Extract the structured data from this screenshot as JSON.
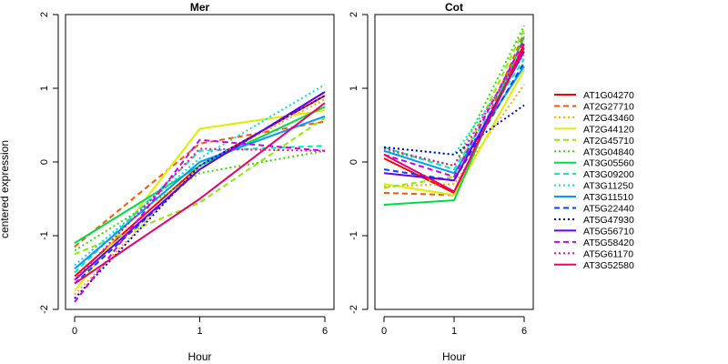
{
  "chart_data": {
    "type": "line",
    "x": [
      "0",
      "1",
      "6"
    ],
    "xlabel": "Hour",
    "ylabel": "centered expression",
    "ylim": [
      -2,
      2
    ],
    "yticks": [
      -2,
      -1,
      0,
      1,
      2
    ],
    "legend": "right",
    "grid": false,
    "panels": [
      {
        "title": "Mer"
      },
      {
        "title": "Cot"
      }
    ],
    "series": [
      {
        "name": "AT1G04270",
        "color": "#FF0000",
        "dash": "solid",
        "values": {
          "Mer": [
            -1.55,
            -0.05,
            0.9
          ],
          "Cot": [
            0.05,
            -0.42,
            1.6
          ]
        }
      },
      {
        "name": "AT2G27710",
        "color": "#FF5500",
        "dash": "dashed",
        "values": {
          "Mer": [
            -1.15,
            0.25,
            0.55
          ],
          "Cot": [
            -0.42,
            -0.45,
            1.75
          ]
        }
      },
      {
        "name": "AT2G43460",
        "color": "#FFAA00",
        "dash": "dotted",
        "values": {
          "Mer": [
            -1.8,
            -0.05,
            0.85
          ],
          "Cot": [
            -0.33,
            -0.3,
            1.05
          ]
        }
      },
      {
        "name": "AT2G44120",
        "color": "#DDEE00",
        "dash": "solid",
        "values": {
          "Mer": [
            -1.75,
            0.45,
            0.7
          ],
          "Cot": [
            -0.3,
            -0.45,
            1.25
          ]
        }
      },
      {
        "name": "AT2G45710",
        "color": "#88EE00",
        "dash": "dashed",
        "values": {
          "Mer": [
            -1.25,
            -0.55,
            0.6
          ],
          "Cot": [
            -0.35,
            -0.2,
            1.8
          ]
        }
      },
      {
        "name": "AT3G04840",
        "color": "#33DD00",
        "dash": "dotted",
        "values": {
          "Mer": [
            -1.2,
            -0.15,
            0.15
          ],
          "Cot": [
            0.15,
            -0.05,
            1.85
          ]
        }
      },
      {
        "name": "AT3G05560",
        "color": "#00DD44",
        "dash": "solid",
        "values": {
          "Mer": [
            -1.1,
            -0.05,
            0.75
          ],
          "Cot": [
            -0.58,
            -0.52,
            1.7
          ]
        }
      },
      {
        "name": "AT3G09200",
        "color": "#00EEAA",
        "dash": "dashed",
        "values": {
          "Mer": [
            -1.5,
            0.15,
            0.22
          ],
          "Cot": [
            0.2,
            -0.1,
            1.4
          ]
        }
      },
      {
        "name": "AT3G11250",
        "color": "#00DDEE",
        "dash": "dotted",
        "values": {
          "Mer": [
            -1.4,
            0.05,
            1.05
          ],
          "Cot": [
            0.2,
            0.1,
            1.45
          ]
        }
      },
      {
        "name": "AT3G11510",
        "color": "#0099FF",
        "dash": "solid",
        "values": {
          "Mer": [
            -1.45,
            0.0,
            0.62
          ],
          "Cot": [
            0.15,
            -0.15,
            1.3
          ]
        }
      },
      {
        "name": "AT5G22440",
        "color": "#0044FF",
        "dash": "dashed",
        "values": {
          "Mer": [
            -1.65,
            -0.1,
            0.95
          ],
          "Cot": [
            -0.1,
            -0.25,
            1.35
          ]
        }
      },
      {
        "name": "AT5G47930",
        "color": "#0000DD",
        "dash": "dotted",
        "values": {
          "Mer": [
            -1.85,
            -0.05,
            0.9
          ],
          "Cot": [
            0.2,
            0.1,
            0.77
          ]
        }
      },
      {
        "name": "AT5G56710",
        "color": "#6600EE",
        "dash": "solid",
        "values": {
          "Mer": [
            -1.6,
            -0.1,
            0.95
          ],
          "Cot": [
            -0.15,
            -0.25,
            1.5
          ]
        }
      },
      {
        "name": "AT5G58420",
        "color": "#CC00EE",
        "dash": "dashed",
        "values": {
          "Mer": [
            -1.9,
            0.3,
            0.15
          ],
          "Cot": [
            0.1,
            -0.2,
            1.65
          ]
        }
      },
      {
        "name": "AT5G61170",
        "color": "#FF00BB",
        "dash": "dotted",
        "values": {
          "Mer": [
            -1.6,
            0.18,
            0.15
          ],
          "Cot": [
            0.18,
            -0.05,
            1.55
          ]
        }
      },
      {
        "name": "AT3G52580",
        "color": "#EE0066",
        "dash": "solid",
        "values": {
          "Mer": [
            -1.65,
            -0.5,
            0.8
          ],
          "Cot": [
            0.1,
            -0.4,
            1.55
          ]
        }
      }
    ]
  }
}
